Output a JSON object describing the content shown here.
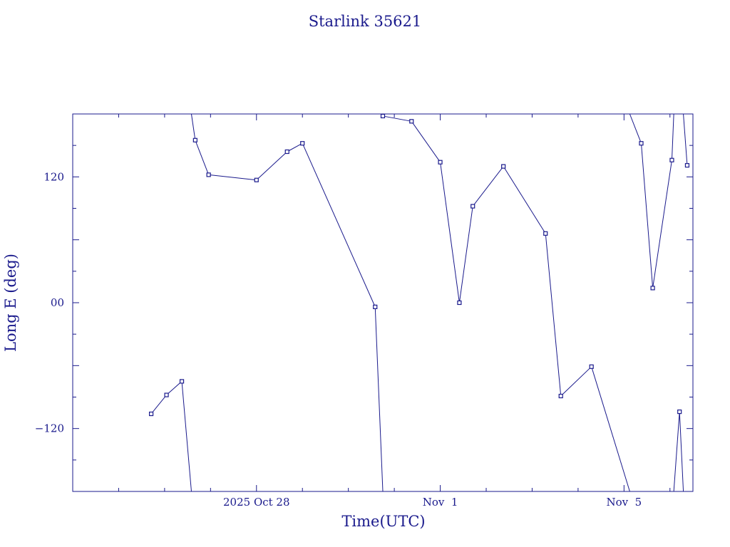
{
  "chart_data": {
    "type": "line",
    "title": "Starlink 35621",
    "xlabel": "Time(UTC)",
    "ylabel": "Long E (deg)",
    "color": "#1a1a8c",
    "x_unit": "days",
    "xlim": [
      "2025-10-24T00:00",
      "2025-11-06T12:00"
    ],
    "ylim": [
      -180,
      180
    ],
    "x_ticks": [
      {
        "date": "2025-10-28",
        "label": "2025 Oct 28"
      },
      {
        "date": "2025-11-01",
        "label": "Nov  1"
      },
      {
        "date": "2025-11-05",
        "label": "Nov  5"
      }
    ],
    "y_ticks": [
      {
        "value": 120,
        "label": "120"
      },
      {
        "value": 0,
        "label": "00"
      },
      {
        "value": -120,
        "label": "−120"
      }
    ],
    "points": [
      {
        "x": "2025-10-25T17:00",
        "y": -106
      },
      {
        "x": "2025-10-26T01:00",
        "y": -88
      },
      {
        "x": "2025-10-26T09:00",
        "y": -75
      },
      {
        "x": "2025-10-26T16:00",
        "y": 155
      },
      {
        "x": "2025-10-26T23:00",
        "y": 122
      },
      {
        "x": "2025-10-28T00:00",
        "y": 117
      },
      {
        "x": "2025-10-28T16:00",
        "y": 144
      },
      {
        "x": "2025-10-29T00:00",
        "y": 152
      },
      {
        "x": "2025-10-30T14:00",
        "y": -4
      },
      {
        "x": "2025-10-30T18:00",
        "y": 178
      },
      {
        "x": "2025-10-31T09:00",
        "y": 173
      },
      {
        "x": "2025-11-01T00:00",
        "y": 134
      },
      {
        "x": "2025-11-01T10:00",
        "y": 0
      },
      {
        "x": "2025-11-01T17:00",
        "y": 92
      },
      {
        "x": "2025-11-02T09:00",
        "y": 130
      },
      {
        "x": "2025-11-03T07:00",
        "y": 66
      },
      {
        "x": "2025-11-03T15:00",
        "y": -89
      },
      {
        "x": "2025-11-04T07:00",
        "y": -61
      },
      {
        "x": "2025-11-05T09:00",
        "y": 152
      },
      {
        "x": "2025-11-05T15:00",
        "y": 14
      },
      {
        "x": "2025-11-06T01:00",
        "y": 136
      },
      {
        "x": "2025-11-06T05:00",
        "y": -104
      },
      {
        "x": "2025-11-06T09:00",
        "y": 131
      }
    ],
    "segments": [
      {
        "from": {
          "x": "2025-10-26T09:00",
          "y": -75
        },
        "to": {
          "x": "2025-10-26T14:00",
          "y": -180
        }
      },
      {
        "from": {
          "x": "2025-10-26T14:00",
          "y": 180
        },
        "to": {
          "x": "2025-10-26T16:00",
          "y": 155
        }
      },
      {
        "from": {
          "x": "2025-10-30T14:00",
          "y": -4
        },
        "to": {
          "x": "2025-10-30T18:00",
          "y": -180
        }
      },
      {
        "from": {
          "x": "2025-11-04T07:00",
          "y": -61
        },
        "to": {
          "x": "2025-11-05T03:00",
          "y": -180
        }
      },
      {
        "from": {
          "x": "2025-11-05T03:00",
          "y": 180
        },
        "to": {
          "x": "2025-11-05T09:00",
          "y": 152
        }
      },
      {
        "from": {
          "x": "2025-11-06T01:00",
          "y": 136
        },
        "to": {
          "x": "2025-11-06T02:00",
          "y": 180
        }
      },
      {
        "from": {
          "x": "2025-11-06T02:00",
          "y": -180
        },
        "to": {
          "x": "2025-11-06T05:00",
          "y": -104
        }
      },
      {
        "from": {
          "x": "2025-11-06T05:00",
          "y": -104
        },
        "to": {
          "x": "2025-11-06T07:00",
          "y": -180
        }
      },
      {
        "from": {
          "x": "2025-11-06T07:00",
          "y": 180
        },
        "to": {
          "x": "2025-11-06T09:00",
          "y": 131
        }
      }
    ]
  }
}
